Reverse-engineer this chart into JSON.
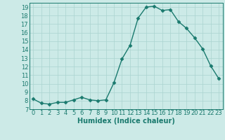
{
  "x": [
    0,
    1,
    2,
    3,
    4,
    5,
    6,
    7,
    8,
    9,
    10,
    11,
    12,
    13,
    14,
    15,
    16,
    17,
    18,
    19,
    20,
    21,
    22,
    23
  ],
  "y": [
    8.2,
    7.7,
    7.6,
    7.8,
    7.8,
    8.1,
    8.4,
    8.1,
    8.0,
    8.1,
    10.1,
    12.9,
    14.5,
    17.7,
    19.0,
    19.1,
    18.6,
    18.7,
    17.3,
    16.5,
    15.4,
    14.1,
    12.1,
    10.6
  ],
  "line_color": "#1a7a6e",
  "marker": "D",
  "markersize": 2.5,
  "linewidth": 1.0,
  "bg_color": "#cceae7",
  "grid_color": "#aad4cf",
  "xlabel": "Humidex (Indice chaleur)",
  "xlabel_fontsize": 7,
  "tick_fontsize": 6,
  "ylim": [
    7,
    19.5
  ],
  "xlim": [
    -0.5,
    23.5
  ],
  "yticks": [
    7,
    8,
    9,
    10,
    11,
    12,
    13,
    14,
    15,
    16,
    17,
    18,
    19
  ],
  "xticks": [
    0,
    1,
    2,
    3,
    4,
    5,
    6,
    7,
    8,
    9,
    10,
    11,
    12,
    13,
    14,
    15,
    16,
    17,
    18,
    19,
    20,
    21,
    22,
    23
  ]
}
